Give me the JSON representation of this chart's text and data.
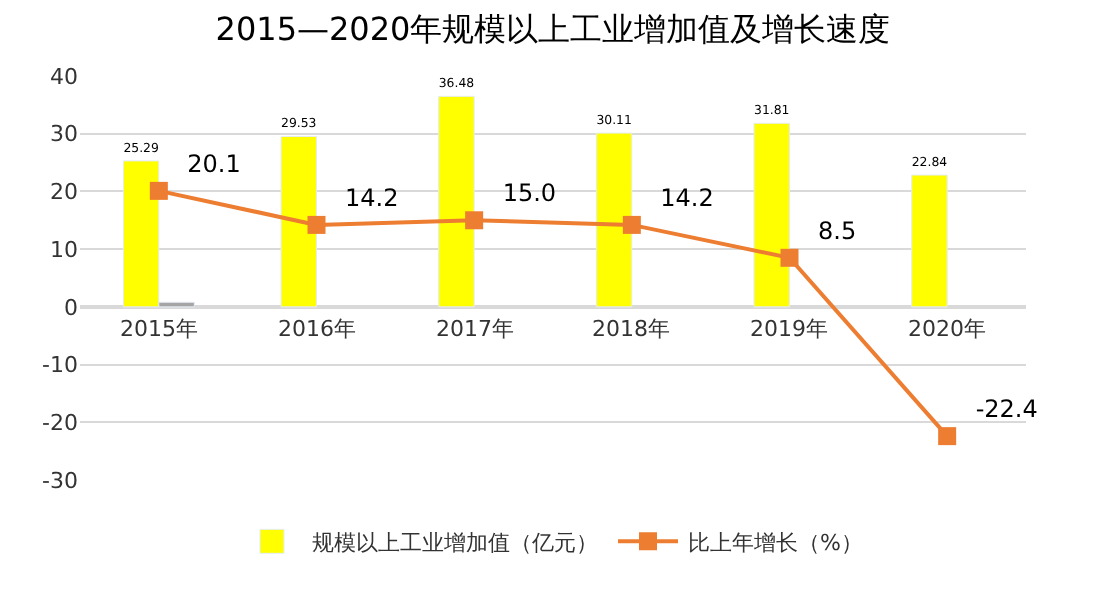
{
  "chart_data": {
    "type": "bar",
    "title": "2015—2020年规模以上工业增加值及增长速度",
    "categories": [
      "2015年",
      "2016年",
      "2017年",
      "2018年",
      "2019年",
      "2020年"
    ],
    "series": [
      {
        "name": "规模以上工业增加值（亿元）",
        "color": "#ffff00",
        "values": [
          25.29,
          29.53,
          36.48,
          30.11,
          31.81,
          22.84
        ],
        "value_labels": [
          "25.29",
          "29.53",
          "36.48",
          "30.11",
          "31.81",
          "22.84"
        ]
      },
      {
        "color": "#a5a5a5",
        "values": [
          0.8,
          null,
          null,
          null,
          null,
          null
        ]
      },
      {
        "name": "比上年增长（%）",
        "type": "line",
        "color": "#ed7d31",
        "values": [
          20.1,
          14.2,
          15.0,
          14.2,
          8.5,
          -22.4
        ],
        "value_labels": [
          "20.1",
          "14.2",
          "15.0",
          "14.2",
          "8.5",
          "-22.4"
        ]
      }
    ],
    "ylim": [
      -30,
      40
    ],
    "yticks": [
      -30,
      -20,
      -10,
      0,
      10,
      20,
      30,
      40
    ],
    "grid": "y",
    "legend": "bottom",
    "marker": "square",
    "line_style": "solid"
  }
}
